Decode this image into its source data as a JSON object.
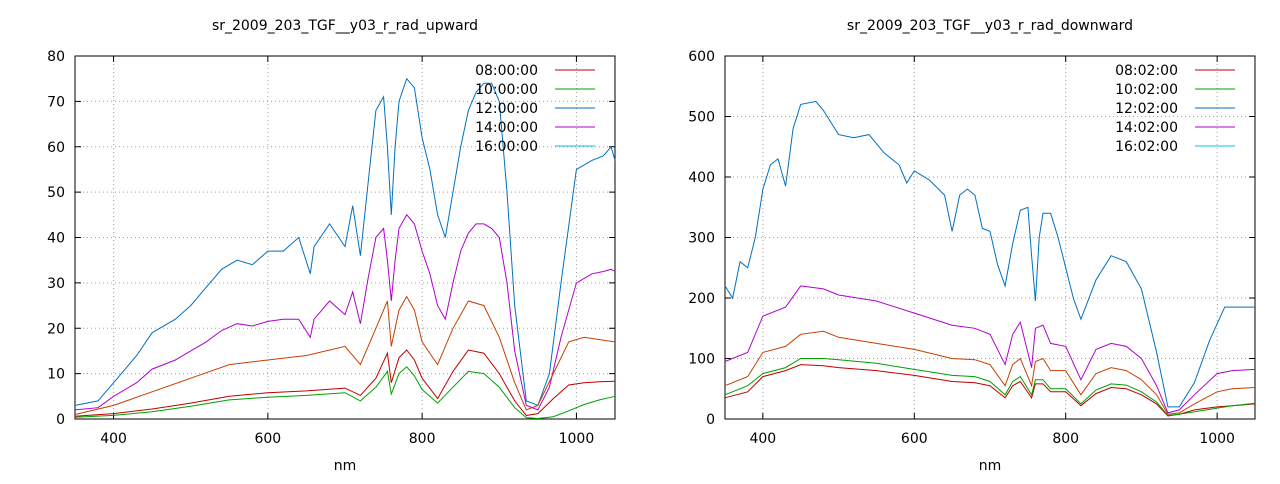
{
  "chart_data": [
    {
      "type": "line",
      "title": "sr_2009_203_TGF__y03_r_rad_upward",
      "xlabel": "nm",
      "ylabel": "",
      "xlim": [
        350,
        1050
      ],
      "ylim": [
        0,
        80
      ],
      "xticks": [
        400,
        600,
        800,
        1000
      ],
      "yticks": [
        0,
        10,
        20,
        30,
        40,
        50,
        60,
        70,
        80
      ],
      "grid": true,
      "legend": "top-right",
      "series": [
        {
          "name": "08:00:00",
          "color": "#c00000",
          "x": [
            350,
            400,
            450,
            500,
            550,
            600,
            650,
            700,
            720,
            740,
            755,
            760,
            770,
            780,
            790,
            800,
            820,
            840,
            860,
            880,
            900,
            920,
            935,
            950,
            970,
            990,
            1010,
            1030,
            1050
          ],
          "y": [
            0.6,
            1.2,
            2.2,
            3.5,
            5.0,
            5.8,
            6.2,
            6.8,
            5.2,
            9.0,
            14.5,
            8.0,
            13.5,
            15.2,
            13.0,
            9.0,
            4.5,
            10.5,
            15.2,
            14.5,
            10.0,
            4.0,
            0.8,
            1.2,
            4.5,
            7.5,
            8.0,
            8.2,
            8.3
          ]
        },
        {
          "name": "10:00:00",
          "color": "#00a000",
          "x": [
            350,
            400,
            450,
            500,
            550,
            600,
            650,
            700,
            720,
            740,
            755,
            760,
            770,
            780,
            790,
            800,
            820,
            840,
            860,
            880,
            900,
            920,
            935,
            950,
            970,
            990,
            1010,
            1030,
            1050
          ],
          "y": [
            0.4,
            0.8,
            1.6,
            2.8,
            4.2,
            4.8,
            5.2,
            5.8,
            4.0,
            7.0,
            10.5,
            5.5,
            10.0,
            11.5,
            9.5,
            6.5,
            3.5,
            7.0,
            10.5,
            10.0,
            7.0,
            2.5,
            0.3,
            0.1,
            0.5,
            1.8,
            3.2,
            4.2,
            5.0
          ]
        },
        {
          "name": "12:00:00",
          "color": "#0070c0",
          "x": [
            350,
            380,
            400,
            430,
            450,
            480,
            500,
            520,
            540,
            560,
            580,
            600,
            620,
            640,
            655,
            660,
            680,
            700,
            710,
            720,
            730,
            740,
            750,
            755,
            760,
            765,
            770,
            780,
            790,
            800,
            810,
            820,
            830,
            840,
            850,
            860,
            870,
            880,
            890,
            900,
            910,
            920,
            935,
            950,
            965,
            980,
            1000,
            1020,
            1035,
            1045,
            1050
          ],
          "y": [
            3,
            4,
            8,
            14,
            19,
            22,
            25,
            29,
            33,
            35,
            34,
            37,
            37,
            40,
            32,
            38,
            43,
            38,
            47,
            36,
            52,
            68,
            71,
            60,
            45,
            60,
            70,
            75,
            73,
            62,
            55,
            45,
            40,
            50,
            60,
            68,
            72,
            74,
            74,
            70,
            50,
            25,
            4,
            3,
            10,
            30,
            55,
            57,
            58,
            60,
            57
          ]
        },
        {
          "name": "14:00:00",
          "color": "#b000d0",
          "x": [
            350,
            380,
            400,
            430,
            450,
            480,
            500,
            520,
            540,
            560,
            580,
            600,
            620,
            640,
            655,
            660,
            680,
            700,
            710,
            720,
            730,
            740,
            750,
            755,
            760,
            765,
            770,
            780,
            790,
            800,
            810,
            820,
            830,
            840,
            850,
            860,
            870,
            880,
            890,
            900,
            910,
            920,
            935,
            950,
            965,
            980,
            1000,
            1020,
            1035,
            1045,
            1050
          ],
          "y": [
            2,
            2.5,
            5,
            8,
            11,
            13,
            15,
            17,
            19.5,
            21,
            20.5,
            21.5,
            22,
            22,
            18,
            22,
            26,
            23,
            28,
            21,
            31,
            40,
            42,
            35,
            26,
            35,
            42,
            45,
            43,
            37,
            32,
            25,
            22,
            30,
            37,
            41,
            43,
            43,
            42,
            40,
            30,
            15,
            3,
            2,
            7,
            18,
            30,
            32,
            32.5,
            33,
            32.5
          ]
        },
        {
          "name": "16:00:00",
          "color": "#00c8d8",
          "x": [],
          "y": []
        },
        {
          "name": "",
          "color": "#c84000",
          "x": [
            350,
            400,
            450,
            500,
            550,
            600,
            650,
            700,
            720,
            740,
            755,
            760,
            770,
            780,
            790,
            800,
            820,
            840,
            860,
            880,
            900,
            920,
            935,
            950,
            970,
            990,
            1010,
            1030,
            1050
          ],
          "y": [
            1,
            3,
            6,
            9,
            12,
            13,
            14,
            16,
            12,
            20,
            26,
            16,
            24,
            27,
            24,
            17,
            12,
            20,
            26,
            25,
            18,
            8,
            2,
            3,
            10,
            17,
            18,
            17.5,
            17
          ]
        }
      ]
    },
    {
      "type": "line",
      "title": "sr_2009_203_TGF__y03_r_rad_downward",
      "xlabel": "nm",
      "ylabel": "",
      "xlim": [
        350,
        1050
      ],
      "ylim": [
        0,
        600
      ],
      "xticks": [
        400,
        600,
        800,
        1000
      ],
      "yticks": [
        0,
        100,
        200,
        300,
        400,
        500,
        600
      ],
      "grid": true,
      "legend": "top-right",
      "series": [
        {
          "name": "08:02:00",
          "color": "#c00000",
          "x": [
            350,
            380,
            400,
            430,
            450,
            480,
            500,
            550,
            600,
            650,
            680,
            700,
            720,
            730,
            740,
            755,
            760,
            770,
            780,
            800,
            820,
            840,
            860,
            880,
            900,
            920,
            935,
            950,
            970,
            1000,
            1020,
            1050
          ],
          "y": [
            35,
            45,
            70,
            80,
            90,
            88,
            85,
            80,
            72,
            62,
            60,
            55,
            35,
            55,
            62,
            35,
            58,
            58,
            45,
            45,
            22,
            42,
            52,
            50,
            40,
            25,
            5,
            8,
            15,
            20,
            22,
            25
          ]
        },
        {
          "name": "10:02:00",
          "color": "#00a000",
          "x": [
            350,
            380,
            400,
            430,
            450,
            480,
            500,
            550,
            600,
            650,
            680,
            700,
            720,
            730,
            740,
            755,
            760,
            770,
            780,
            800,
            820,
            840,
            860,
            880,
            900,
            920,
            935,
            950,
            970,
            1000,
            1020,
            1050
          ],
          "y": [
            40,
            55,
            75,
            85,
            100,
            100,
            98,
            92,
            82,
            72,
            70,
            62,
            40,
            62,
            70,
            40,
            65,
            65,
            50,
            50,
            25,
            48,
            58,
            56,
            45,
            28,
            6,
            8,
            12,
            18,
            22,
            26
          ]
        },
        {
          "name": "12:02:00",
          "color": "#0070c0",
          "x": [
            350,
            360,
            370,
            380,
            390,
            400,
            410,
            420,
            430,
            440,
            450,
            470,
            480,
            500,
            520,
            540,
            560,
            580,
            590,
            600,
            620,
            640,
            650,
            660,
            670,
            680,
            690,
            700,
            710,
            720,
            730,
            740,
            750,
            755,
            760,
            765,
            770,
            780,
            790,
            800,
            810,
            820,
            840,
            860,
            880,
            900,
            920,
            935,
            950,
            970,
            990,
            1010,
            1030,
            1050
          ],
          "y": [
            220,
            200,
            260,
            250,
            300,
            380,
            420,
            430,
            385,
            480,
            520,
            525,
            510,
            470,
            465,
            470,
            440,
            420,
            390,
            410,
            395,
            370,
            310,
            370,
            380,
            370,
            315,
            310,
            255,
            220,
            290,
            345,
            350,
            270,
            195,
            300,
            340,
            340,
            300,
            250,
            200,
            165,
            230,
            270,
            260,
            215,
            110,
            20,
            20,
            60,
            130,
            185,
            185,
            185
          ]
        },
        {
          "name": "14:02:00",
          "color": "#b000d0",
          "x": [
            350,
            380,
            400,
            430,
            450,
            480,
            500,
            550,
            600,
            650,
            680,
            700,
            720,
            730,
            740,
            755,
            760,
            770,
            780,
            800,
            820,
            840,
            860,
            880,
            900,
            920,
            935,
            950,
            970,
            1000,
            1020,
            1050
          ],
          "y": [
            95,
            110,
            170,
            185,
            220,
            215,
            205,
            195,
            175,
            155,
            150,
            140,
            90,
            140,
            160,
            85,
            150,
            155,
            125,
            120,
            65,
            115,
            125,
            120,
            100,
            55,
            10,
            15,
            40,
            75,
            80,
            82
          ]
        },
        {
          "name": "16:02:00",
          "color": "#00c8d8",
          "x": [],
          "y": []
        },
        {
          "name": "",
          "color": "#c84000",
          "x": [
            350,
            380,
            400,
            430,
            450,
            480,
            500,
            550,
            600,
            650,
            680,
            700,
            720,
            730,
            740,
            755,
            760,
            770,
            780,
            800,
            820,
            840,
            860,
            880,
            900,
            920,
            935,
            950,
            970,
            1000,
            1020,
            1050
          ],
          "y": [
            55,
            70,
            110,
            120,
            140,
            145,
            135,
            125,
            115,
            100,
            98,
            90,
            55,
            90,
            100,
            55,
            95,
            100,
            80,
            80,
            40,
            75,
            85,
            80,
            65,
            40,
            8,
            10,
            25,
            45,
            50,
            52
          ]
        }
      ]
    }
  ]
}
